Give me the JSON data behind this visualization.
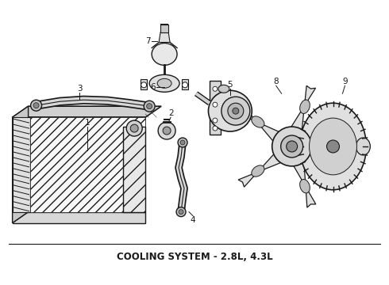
{
  "title": "COOLING SYSTEM - 2.8L, 4.3L",
  "title_fontsize": 8.5,
  "title_fontweight": "bold",
  "bg_color": "#ffffff",
  "line_color": "#1a1a1a",
  "fig_width": 4.9,
  "fig_height": 3.6,
  "dpi": 100
}
